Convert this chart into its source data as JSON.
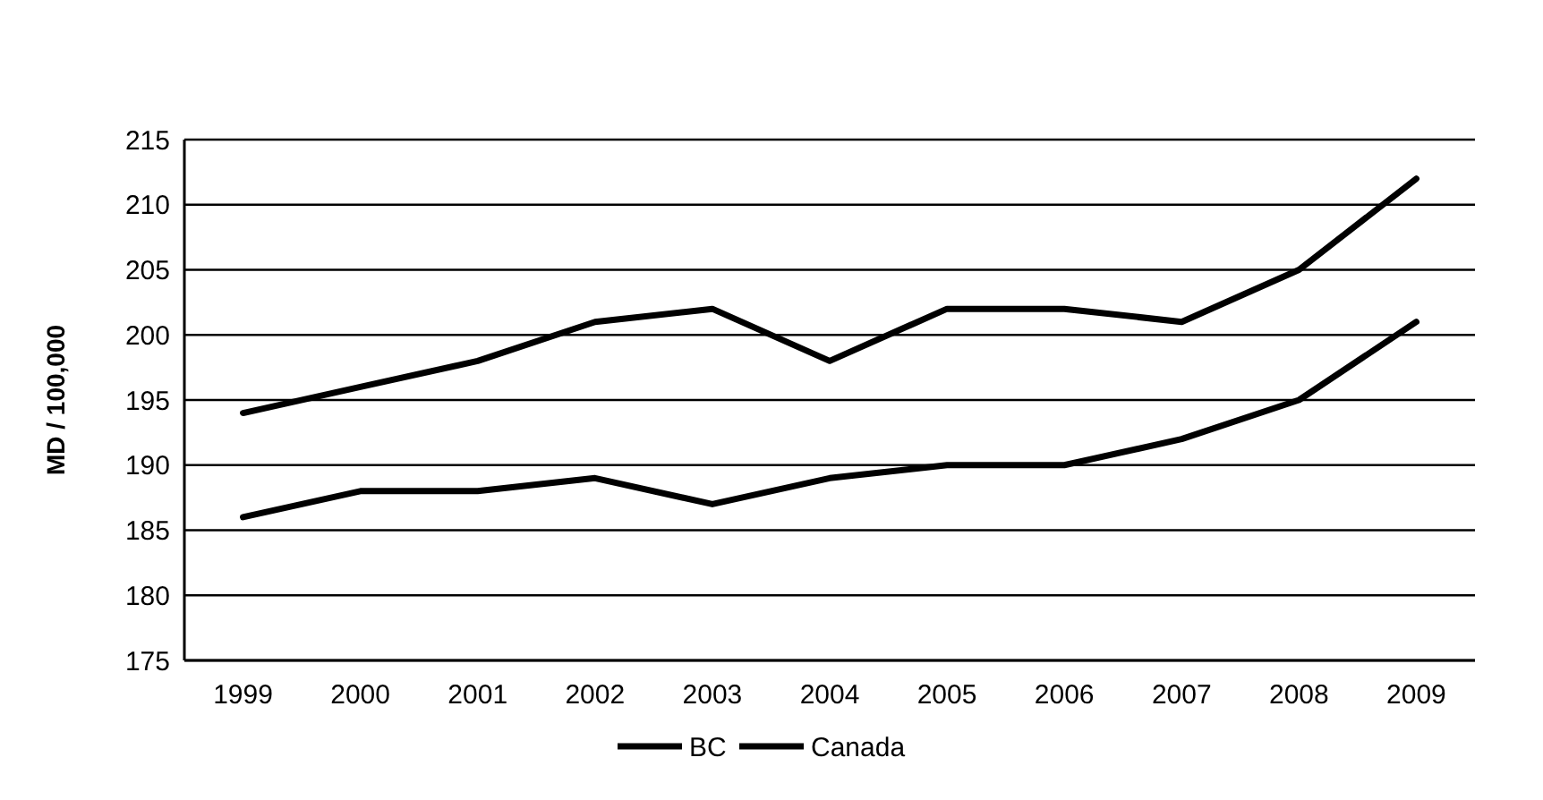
{
  "chart_data": {
    "type": "line",
    "ylabel": "MD / 100,000",
    "categories": [
      "1999",
      "2000",
      "2001",
      "2002",
      "2003",
      "2004",
      "2005",
      "2006",
      "2007",
      "2008",
      "2009"
    ],
    "series": [
      {
        "name": "BC",
        "color": "#000000",
        "values": [
          194,
          196,
          198,
          201,
          202,
          198,
          202,
          202,
          201,
          205,
          212
        ]
      },
      {
        "name": "Canada",
        "color": "#000000",
        "values": [
          186,
          188,
          188,
          189,
          187,
          189,
          190,
          190,
          192,
          195,
          201
        ]
      }
    ],
    "ylim": [
      175,
      215
    ],
    "yticks": [
      175,
      180,
      185,
      190,
      195,
      200,
      205,
      210,
      215
    ],
    "grid": "y",
    "legend": "bottom",
    "marker": "none",
    "line_style": "solid"
  }
}
